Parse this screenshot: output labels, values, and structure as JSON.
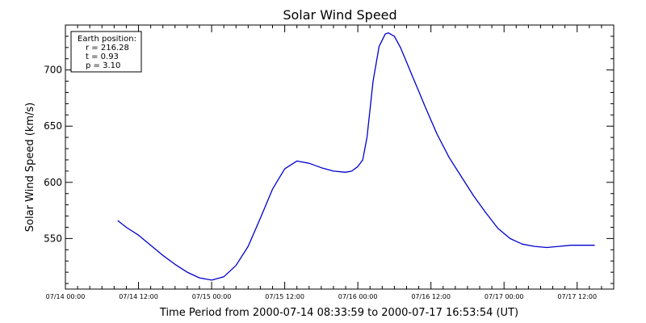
{
  "chart_data": {
    "type": "line",
    "title": "Solar Wind Speed",
    "xlabel": "Time Period from 2000-07-14 08:33:59 to 2000-07-17 16:53:54 (UT)",
    "ylabel": "Solar Wind Speed (km/s)",
    "x_axis": {
      "unit": "hours since 07/14 00:00",
      "range": [
        0,
        90
      ],
      "tick_values": [
        0,
        12,
        24,
        36,
        48,
        60,
        72,
        84
      ],
      "tick_labels": [
        "07/14 00:00",
        "07/14 12:00",
        "07/15 00:00",
        "07/15 12:00",
        "07/16 00:00",
        "07/16 12:00",
        "07/17 00:00",
        "07/17 12:00"
      ]
    },
    "y_axis": {
      "range": [
        505,
        740
      ],
      "tick_values": [
        550,
        600,
        650,
        700
      ],
      "tick_labels": [
        "550",
        "600",
        "650",
        "700"
      ]
    },
    "series": [
      {
        "color": "#0000cc",
        "x": [
          8.57,
          10,
          12,
          14,
          16,
          18,
          20,
          22,
          24,
          26,
          28,
          30,
          32,
          34,
          36,
          38,
          40,
          42,
          44,
          46,
          47,
          48,
          48.8,
          49.5,
          50.5,
          51.5,
          52.5,
          53,
          54,
          55,
          56,
          57,
          58,
          59,
          61,
          63,
          65,
          67,
          69,
          71,
          73,
          75,
          77,
          79,
          81,
          83,
          85,
          86.9
        ],
        "y": [
          566,
          560,
          553,
          544,
          535,
          527,
          520,
          515,
          513,
          516,
          526,
          543,
          568,
          594,
          612,
          619,
          617,
          613,
          610,
          609,
          610,
          614,
          620,
          640,
          690,
          721,
          732,
          733,
          730,
          720,
          707,
          694,
          681,
          668,
          643,
          622,
          605,
          588,
          573,
          559,
          550,
          545,
          543,
          542,
          543,
          544,
          544,
          544
        ]
      }
    ],
    "annotation": {
      "heading": "Earth position:",
      "lines": [
        "r = 216.28",
        "t = 0.93",
        "p = 3.10"
      ]
    },
    "grid": false,
    "legend": "none"
  }
}
